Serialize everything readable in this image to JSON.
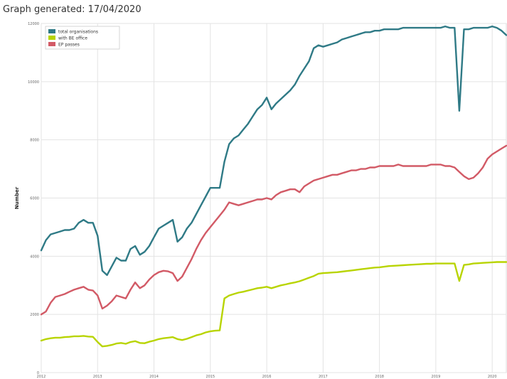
{
  "caption": "Graph generated: 17/04/2020",
  "chart_data": {
    "type": "line",
    "title": "",
    "xlabel": "",
    "ylabel": "Number",
    "ylim": [
      0,
      12000
    ],
    "yticks": [
      "0",
      "2000",
      "4000",
      "6000",
      "8000",
      "10000",
      "12000"
    ],
    "xticks": [
      "2012",
      "2013",
      "2014",
      "2015",
      "2016",
      "2017",
      "2018",
      "2019",
      "2020"
    ],
    "grid": true,
    "legend_position": "top-left",
    "x": [
      "2012-01",
      "2012-02",
      "2012-03",
      "2012-04",
      "2012-05",
      "2012-06",
      "2012-07",
      "2012-08",
      "2012-09",
      "2012-10",
      "2012-11",
      "2012-12",
      "2013-01",
      "2013-02",
      "2013-03",
      "2013-04",
      "2013-05",
      "2013-06",
      "2013-07",
      "2013-08",
      "2013-09",
      "2013-10",
      "2013-11",
      "2013-12",
      "2014-01",
      "2014-02",
      "2014-03",
      "2014-04",
      "2014-05",
      "2014-06",
      "2014-07",
      "2014-08",
      "2014-09",
      "2014-10",
      "2014-11",
      "2014-12",
      "2015-01",
      "2015-02",
      "2015-03",
      "2015-04",
      "2015-05",
      "2015-06",
      "2015-07",
      "2015-08",
      "2015-09",
      "2015-10",
      "2015-11",
      "2015-12",
      "2016-01",
      "2016-02",
      "2016-03",
      "2016-04",
      "2016-05",
      "2016-06",
      "2016-07",
      "2016-08",
      "2016-09",
      "2016-10",
      "2016-11",
      "2016-12",
      "2017-01",
      "2017-02",
      "2017-03",
      "2017-04",
      "2017-05",
      "2017-06",
      "2017-07",
      "2017-08",
      "2017-09",
      "2017-10",
      "2017-11",
      "2017-12",
      "2018-01",
      "2018-02",
      "2018-03",
      "2018-04",
      "2018-05",
      "2018-06",
      "2018-07",
      "2018-08",
      "2018-09",
      "2018-10",
      "2018-11",
      "2018-12",
      "2019-01",
      "2019-02",
      "2019-03",
      "2019-04",
      "2019-05",
      "2019-06",
      "2019-07",
      "2019-08",
      "2019-09",
      "2019-10",
      "2019-11",
      "2019-12",
      "2020-01",
      "2020-02",
      "2020-03",
      "2020-04"
    ],
    "series": [
      {
        "name": "total organisations",
        "color": "#2f7a86",
        "values": [
          4200,
          4550,
          4750,
          4800,
          4850,
          4900,
          4900,
          4950,
          5150,
          5250,
          5150,
          5150,
          4700,
          3500,
          3350,
          3650,
          3950,
          3850,
          3850,
          4250,
          4350,
          4050,
          4150,
          4350,
          4650,
          4950,
          5050,
          5150,
          5250,
          4500,
          4650,
          4950,
          5150,
          5450,
          5750,
          6050,
          6350,
          6350,
          6350,
          7250,
          7850,
          8050,
          8150,
          8350,
          8550,
          8800,
          9050,
          9200,
          9450,
          9050,
          9250,
          9400,
          9550,
          9700,
          9900,
          10200,
          10450,
          10700,
          11150,
          11250,
          11200,
          11250,
          11300,
          11350,
          11450,
          11500,
          11550,
          11600,
          11650,
          11700,
          11700,
          11750,
          11750,
          11800,
          11800,
          11800,
          11800,
          11850,
          11850,
          11850,
          11850,
          11850,
          11850,
          11850,
          11850,
          11850,
          11900,
          11850,
          11850,
          9000,
          11800,
          11800,
          11850,
          11850,
          11850,
          11850,
          11900,
          11850,
          11750,
          11600
        ]
      },
      {
        "name": "with BE office",
        "color": "#b8d400",
        "values": [
          1100,
          1150,
          1180,
          1200,
          1200,
          1220,
          1230,
          1250,
          1250,
          1260,
          1240,
          1230,
          1050,
          900,
          920,
          950,
          1000,
          1020,
          990,
          1050,
          1080,
          1020,
          1010,
          1060,
          1100,
          1150,
          1180,
          1200,
          1220,
          1150,
          1120,
          1160,
          1220,
          1280,
          1320,
          1380,
          1420,
          1440,
          1450,
          2550,
          2650,
          2700,
          2750,
          2780,
          2820,
          2860,
          2900,
          2920,
          2950,
          2900,
          2950,
          3000,
          3030,
          3070,
          3100,
          3140,
          3200,
          3260,
          3320,
          3400,
          3420,
          3430,
          3440,
          3450,
          3470,
          3490,
          3510,
          3530,
          3550,
          3570,
          3590,
          3610,
          3620,
          3640,
          3660,
          3670,
          3680,
          3690,
          3700,
          3710,
          3720,
          3730,
          3740,
          3740,
          3750,
          3750,
          3750,
          3750,
          3750,
          3150,
          3700,
          3720,
          3750,
          3760,
          3770,
          3780,
          3790,
          3800,
          3800,
          3800
        ]
      },
      {
        "name": "EP passes",
        "color": "#d25a66",
        "values": [
          2000,
          2100,
          2400,
          2600,
          2650,
          2700,
          2780,
          2850,
          2900,
          2950,
          2850,
          2820,
          2650,
          2200,
          2300,
          2450,
          2650,
          2600,
          2550,
          2850,
          3100,
          2900,
          3000,
          3200,
          3350,
          3450,
          3500,
          3480,
          3420,
          3150,
          3300,
          3600,
          3900,
          4250,
          4550,
          4800,
          5000,
          5200,
          5400,
          5600,
          5850,
          5800,
          5750,
          5800,
          5850,
          5900,
          5950,
          5950,
          6000,
          5950,
          6100,
          6200,
          6250,
          6300,
          6300,
          6200,
          6400,
          6500,
          6600,
          6650,
          6700,
          6750,
          6800,
          6800,
          6850,
          6900,
          6950,
          6950,
          7000,
          7000,
          7050,
          7050,
          7100,
          7100,
          7100,
          7100,
          7150,
          7100,
          7100,
          7100,
          7100,
          7100,
          7100,
          7150,
          7150,
          7150,
          7100,
          7100,
          7050,
          6900,
          6750,
          6650,
          6700,
          6850,
          7050,
          7350,
          7500,
          7600,
          7700,
          7800
        ]
      }
    ]
  }
}
